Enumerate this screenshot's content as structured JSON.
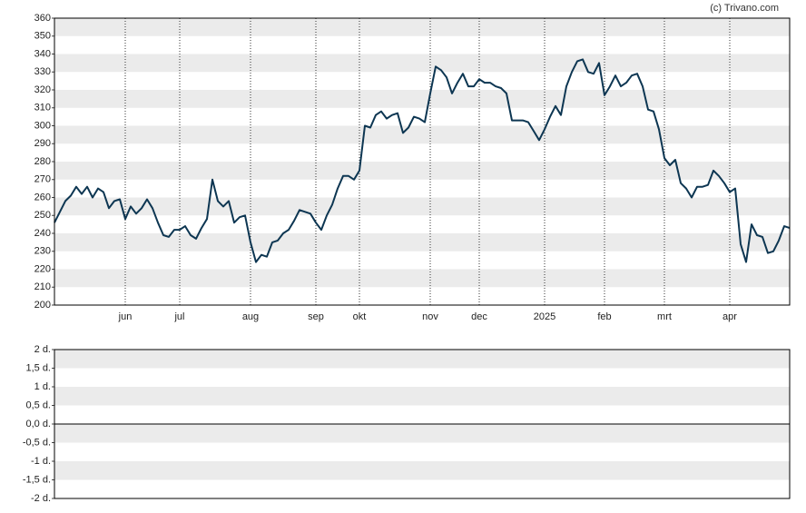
{
  "credit": "(c) Trivano.com",
  "chart_data": [
    {
      "type": "line",
      "categories": [
        null,
        null,
        null,
        null,
        null,
        null,
        null,
        null,
        null,
        null,
        null,
        null,
        null,
        "jun",
        null,
        null,
        null,
        null,
        null,
        null,
        null,
        null,
        null,
        "jul",
        null,
        null,
        null,
        null,
        null,
        null,
        null,
        null,
        null,
        null,
        null,
        null,
        "aug",
        null,
        null,
        null,
        null,
        null,
        null,
        null,
        null,
        null,
        null,
        null,
        "sep",
        null,
        null,
        null,
        null,
        null,
        null,
        null,
        "okt",
        null,
        null,
        null,
        null,
        null,
        null,
        null,
        null,
        null,
        null,
        null,
        null,
        "nov",
        null,
        null,
        null,
        null,
        null,
        null,
        null,
        null,
        "dec",
        null,
        null,
        null,
        null,
        null,
        null,
        null,
        null,
        null,
        null,
        null,
        "2025",
        null,
        null,
        null,
        null,
        null,
        null,
        null,
        null,
        null,
        null,
        "feb",
        null,
        null,
        null,
        null,
        null,
        null,
        null,
        null,
        null,
        null,
        "mrt",
        null,
        null,
        null,
        null,
        null,
        null,
        null,
        null,
        null,
        null,
        null,
        "apr",
        null,
        null,
        null,
        null,
        null,
        null,
        null,
        null,
        null,
        null,
        null
      ],
      "series": [
        {
          "color": "#0d3652",
          "values": [
            246,
            252,
            258,
            261,
            266,
            262,
            266,
            260,
            265,
            263,
            254,
            258,
            259,
            248,
            255,
            251,
            254,
            259,
            254,
            246,
            239,
            238,
            242,
            242,
            244,
            239,
            237,
            243,
            248,
            270,
            258,
            255,
            258,
            246,
            249,
            250,
            235,
            224,
            228,
            227,
            235,
            236,
            240,
            242,
            247,
            253,
            252,
            251,
            246,
            242,
            250,
            256,
            265,
            272,
            272,
            270,
            275,
            300,
            299,
            306,
            308,
            304,
            306,
            307,
            296,
            299,
            305,
            304,
            302,
            318,
            333,
            331,
            327,
            318,
            324,
            329,
            322,
            322,
            326,
            324,
            324,
            322,
            321,
            318,
            303,
            303,
            303,
            302,
            297,
            292,
            298,
            305,
            311,
            306,
            322,
            330,
            336,
            337,
            330,
            329,
            335,
            317,
            322,
            328,
            322,
            324,
            328,
            329,
            322,
            309,
            308,
            298,
            282,
            278,
            281,
            268,
            265,
            260,
            266,
            266,
            267,
            275,
            272,
            268,
            263,
            265,
            234,
            224,
            245,
            239,
            238,
            229,
            230,
            236,
            244,
            243
          ]
        }
      ],
      "ylim": [
        200,
        360
      ],
      "yticks": [
        200,
        210,
        220,
        230,
        240,
        250,
        260,
        270,
        280,
        290,
        300,
        310,
        320,
        330,
        340,
        350,
        360
      ],
      "grid": true
    },
    {
      "type": "bar",
      "ylim": [
        -2,
        2
      ],
      "yticks": [
        {
          "value": -2,
          "label": "-2 d."
        },
        {
          "value": -1.5,
          "label": "-1,5 d."
        },
        {
          "value": -1,
          "label": "-1 d."
        },
        {
          "value": -0.5,
          "label": "-0,5 d."
        },
        {
          "value": 0,
          "label": "0,0 d."
        },
        {
          "value": 0.5,
          "label": "0,5 d."
        },
        {
          "value": 1,
          "label": "1 d."
        },
        {
          "value": 1.5,
          "label": "1,5 d."
        },
        {
          "value": 2,
          "label": "2 d."
        }
      ],
      "grid": true
    }
  ]
}
